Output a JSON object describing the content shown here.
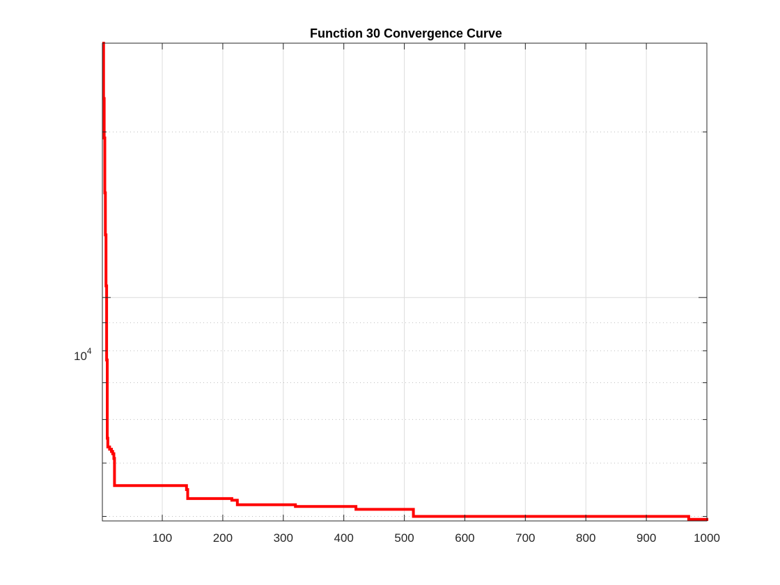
{
  "chart_data": {
    "type": "line",
    "title": "Function 30 Convergence Curve",
    "xlabel": "",
    "ylabel": "",
    "xlim": [
      1,
      1000
    ],
    "ylim": [
      3925,
      29000
    ],
    "y_scale": "log",
    "grid": true,
    "x_ticks": [
      100,
      200,
      300,
      400,
      500,
      600,
      700,
      800,
      900,
      1000
    ],
    "x_tick_labels": [
      "100",
      "200",
      "300",
      "400",
      "500",
      "600",
      "700",
      "800",
      "900",
      "1000"
    ],
    "y_major_tick": 10000,
    "y_major_tick_label": {
      "base": "10",
      "exponent": "4"
    },
    "y_minor_ticks": [
      4000,
      5000,
      6000,
      7000,
      8000,
      9000,
      20000,
      30000
    ],
    "series": [
      {
        "name": "",
        "color": "#ff0000",
        "step": true,
        "points": [
          [
            1,
            29000
          ],
          [
            3,
            23000
          ],
          [
            4,
            19500
          ],
          [
            5,
            15500
          ],
          [
            6,
            13000
          ],
          [
            7,
            10500
          ],
          [
            8,
            7700
          ],
          [
            9,
            5550
          ],
          [
            10,
            5350
          ],
          [
            13,
            5300
          ],
          [
            16,
            5250
          ],
          [
            18,
            5200
          ],
          [
            20,
            5100
          ],
          [
            21,
            4550
          ],
          [
            140,
            4475
          ],
          [
            142,
            4310
          ],
          [
            215,
            4280
          ],
          [
            224,
            4200
          ],
          [
            320,
            4170
          ],
          [
            420,
            4120
          ],
          [
            515,
            4000
          ],
          [
            970,
            3950
          ],
          [
            1000,
            3925
          ]
        ]
      }
    ]
  }
}
